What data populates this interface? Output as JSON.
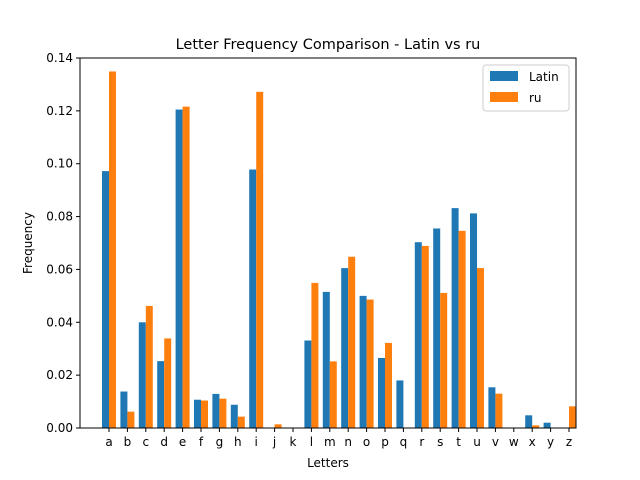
{
  "chart_data": {
    "type": "bar",
    "title": "Letter Frequency Comparison - Latin vs ru",
    "xlabel": "Letters",
    "ylabel": "Frequency",
    "ylim": [
      0,
      0.14
    ],
    "yticks": [
      "0.00",
      "0.02",
      "0.04",
      "0.06",
      "0.08",
      "0.10",
      "0.12",
      "0.14"
    ],
    "legend_position": "top-right",
    "grid": false,
    "categories": [
      "a",
      "b",
      "c",
      "d",
      "e",
      "f",
      "g",
      "h",
      "i",
      "j",
      "k",
      "l",
      "m",
      "n",
      "o",
      "p",
      "q",
      "r",
      "s",
      "t",
      "u",
      "v",
      "w",
      "x",
      "y",
      "z"
    ],
    "series": [
      {
        "name": "Latin",
        "color": "#1f77b4",
        "values": [
          0.0972,
          0.0138,
          0.04,
          0.0253,
          0.1205,
          0.0107,
          0.0129,
          0.0088,
          0.0978,
          0.0,
          0.0,
          0.0331,
          0.0515,
          0.0605,
          0.05,
          0.0265,
          0.018,
          0.0703,
          0.0755,
          0.0832,
          0.0812,
          0.0154,
          0.0,
          0.0048,
          0.002,
          0.0
        ]
      },
      {
        "name": "ru",
        "color": "#ff7f0e",
        "values": [
          0.1349,
          0.0062,
          0.0462,
          0.0339,
          0.1216,
          0.0104,
          0.0111,
          0.0043,
          0.1272,
          0.0014,
          0.0,
          0.0549,
          0.0252,
          0.0648,
          0.0486,
          0.0322,
          0.0,
          0.0689,
          0.0511,
          0.0746,
          0.0605,
          0.013,
          0.0,
          0.001,
          0.0,
          0.0082
        ]
      }
    ]
  }
}
